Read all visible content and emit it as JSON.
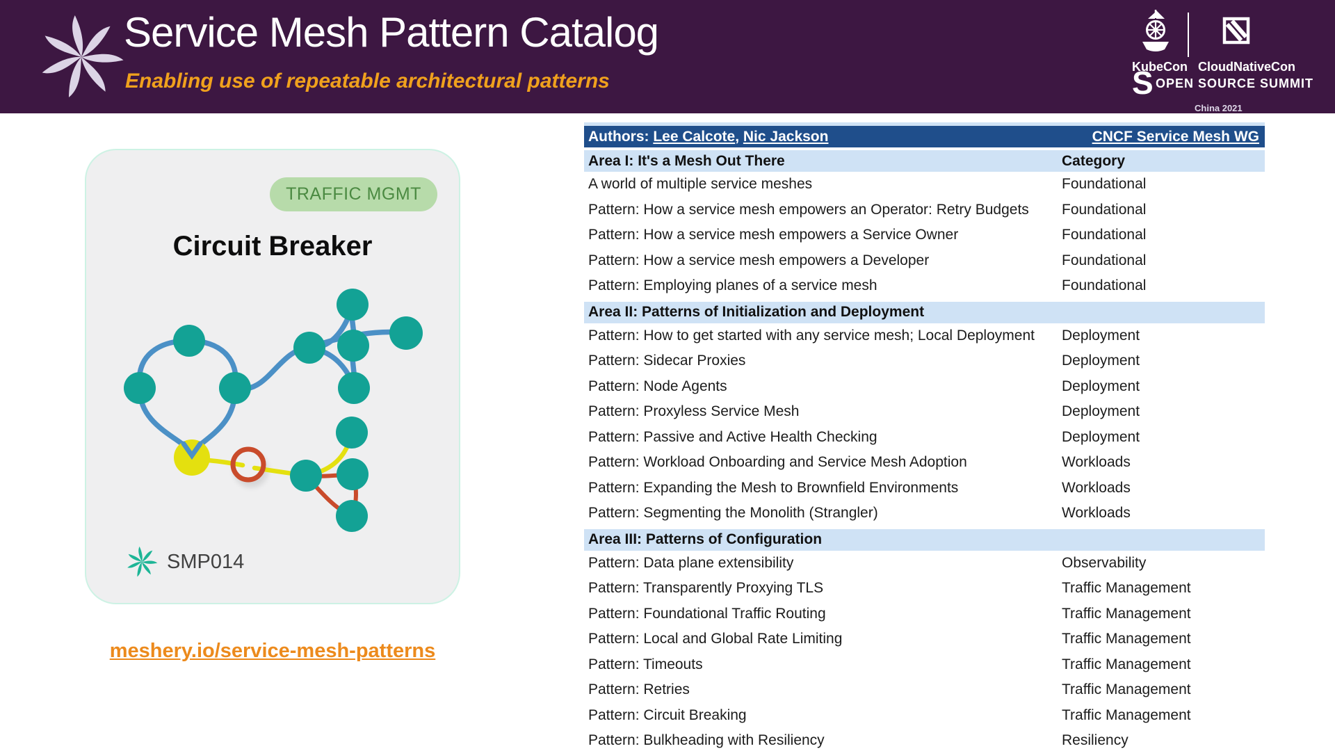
{
  "header": {
    "title": "Service Mesh Pattern Catalog",
    "subtitle": "Enabling use of repeatable architectural patterns",
    "conference": {
      "kubecon": "KubeCon",
      "cloudnativecon": "CloudNativeCon",
      "summit_s": "S",
      "summit": "OPEN SOURCE SUMMIT",
      "location": "China 2021"
    }
  },
  "card": {
    "badge": "TRAFFIC MGMT",
    "title": "Circuit Breaker",
    "id": "SMP014"
  },
  "footer_link": "meshery.io/service-mesh-patterns",
  "table": {
    "authors_prefix": "Authors: ",
    "authors": [
      "Lee Calcote",
      "Nic Jackson"
    ],
    "authors_separator": ", ",
    "wg_link": "CNCF Service Mesh WG",
    "category_header": "Category",
    "sections": [
      {
        "title": "Area I: It's a Mesh Out There",
        "rows": [
          {
            "pattern": "A world of multiple service meshes",
            "category": "Foundational"
          },
          {
            "pattern": "Pattern: How a service mesh empowers an Operator: Retry Budgets",
            "category": "Foundational"
          },
          {
            "pattern": "Pattern: How a service mesh empowers a Service Owner",
            "category": "Foundational"
          },
          {
            "pattern": "Pattern: How a service mesh empowers a Developer",
            "category": "Foundational"
          },
          {
            "pattern": "Pattern: Employing planes of a service mesh",
            "category": "Foundational"
          }
        ]
      },
      {
        "title": "Area II: Patterns of Initialization and Deployment",
        "rows": [
          {
            "pattern": "Pattern: How to get started with any service mesh; Local Deployment",
            "category": "Deployment"
          },
          {
            "pattern": "Pattern: Sidecar Proxies",
            "category": "Deployment"
          },
          {
            "pattern": "Pattern: Node Agents",
            "category": "Deployment"
          },
          {
            "pattern": "Pattern: Proxyless Service Mesh",
            "category": "Deployment"
          },
          {
            "pattern": "Pattern: Passive and Active Health Checking",
            "category": "Deployment"
          },
          {
            "pattern": "Pattern: Workload Onboarding and Service Mesh Adoption",
            "category": "Workloads"
          },
          {
            "pattern": "Pattern: Expanding the Mesh to Brownfield Environments",
            "category": "Workloads"
          },
          {
            "pattern": "Pattern: Segmenting the Monolith (Strangler)",
            "category": "Workloads"
          }
        ]
      },
      {
        "title": "Area III: Patterns of Configuration",
        "rows": [
          {
            "pattern": "Pattern: Data plane extensibility",
            "category": "Observability"
          },
          {
            "pattern": "Pattern: Transparently Proxying TLS",
            "category": "Traffic Management"
          },
          {
            "pattern": "Pattern: Foundational Traffic Routing",
            "category": "Traffic Management"
          },
          {
            "pattern": "Pattern: Local and Global Rate Limiting",
            "category": "Traffic Management"
          },
          {
            "pattern": "Pattern: Timeouts",
            "category": "Traffic Management"
          },
          {
            "pattern": "Pattern: Retries",
            "category": "Traffic Management"
          },
          {
            "pattern": "Pattern: Circuit Breaking",
            "category": "Traffic Management"
          },
          {
            "pattern": "Pattern: Bulkheading with Resiliency",
            "category": "Resiliency"
          }
        ]
      }
    ]
  },
  "icons": {
    "meshery_logo": "meshery-spiral",
    "kubecon": "ship-helm",
    "cloudnativecon": "cncf-cube",
    "summit": "s-link",
    "smp_logo": "meshery-spiral-teal",
    "breaker": "open-red-ring"
  },
  "colors": {
    "header_bg": "#3d1742",
    "subtitle_orange": "#f0a11d",
    "link_orange": "#ec8a1c",
    "table_header_bg": "#1f4e8b",
    "section_band_bg": "#cfe2f5",
    "node_teal": "#13a295",
    "edge_blue": "#4b90c6",
    "node_yellow": "#e4e00f",
    "breaker_red": "#c94b2b",
    "badge_bg": "#b7dbaa",
    "badge_text": "#4b8a42",
    "card_bg": "#efeff0"
  }
}
